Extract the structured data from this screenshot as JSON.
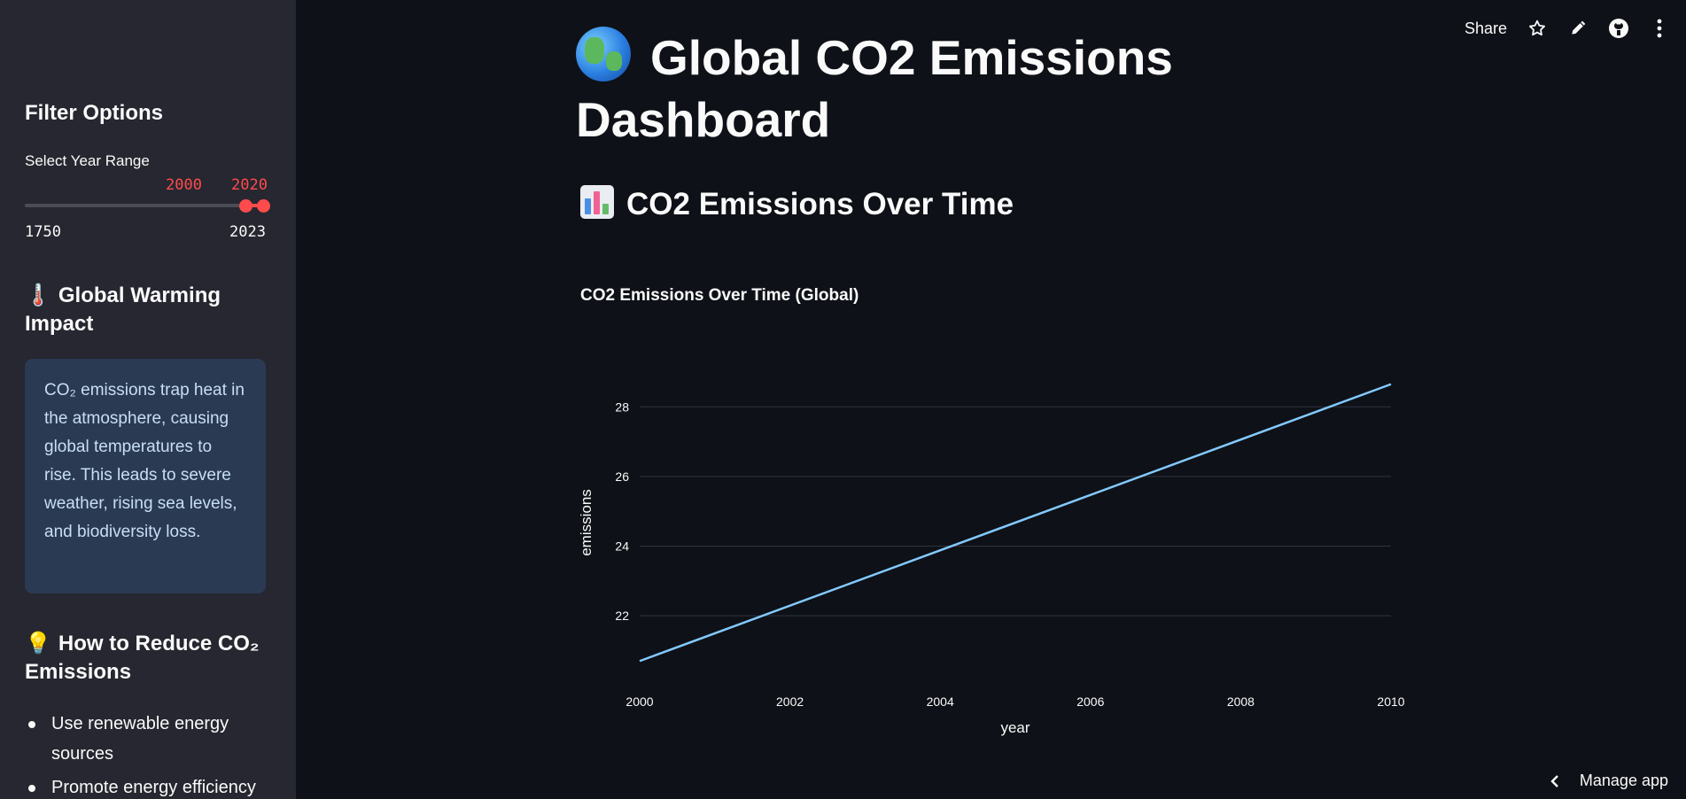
{
  "sidebar": {
    "filter_heading": "Filter Options",
    "year_range_label": "Select Year Range",
    "slider": {
      "min": 1750,
      "max": 2023,
      "selected_start": "2000",
      "selected_end": "2020",
      "min_label": "1750",
      "max_label": "2023"
    },
    "warming_heading": "Global Warming Impact",
    "warming_text": "CO₂ emissions trap heat in the atmosphere, causing global temperatures to rise. This leads to severe weather, rising sea levels, and biodiversity loss.",
    "reduce_heading": "How to Reduce CO₂ Emissions",
    "tips": [
      "Use renewable energy sources",
      "Promote energy efficiency"
    ]
  },
  "toolbar": {
    "share_label": "Share"
  },
  "main": {
    "title": "Global CO2 Emissions Dashboard",
    "section_title": "CO2 Emissions Over Time"
  },
  "footer": {
    "manage_label": "Manage app"
  },
  "colors": {
    "accent": "#ff4b4b",
    "line": "#83c9ff",
    "sidebar_bg": "#262730",
    "info_bg": "#2b3a53"
  },
  "chart_data": {
    "type": "line",
    "title": "CO2 Emissions Over Time (Global)",
    "xlabel": "year",
    "ylabel": "emissions",
    "x": [
      2000,
      2010
    ],
    "series": [
      {
        "values": [
          20.7,
          28.65
        ]
      }
    ],
    "xticks": [
      2000,
      2002,
      2004,
      2006,
      2008,
      2010
    ],
    "xtick_labels": [
      "2000",
      "2002",
      "2004",
      "2006",
      "2008",
      "2010"
    ],
    "yticks": [
      22,
      24,
      26,
      28
    ],
    "ytick_labels": [
      "22",
      "24",
      "26",
      "28"
    ],
    "xlim": [
      2000,
      2010
    ],
    "ylim": [
      20.35,
      29.0
    ],
    "grid": true
  }
}
